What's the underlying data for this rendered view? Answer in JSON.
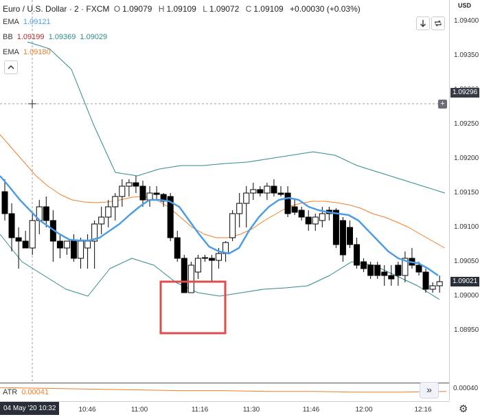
{
  "header": {
    "symbol": "Euro / U.S. Dollar · 2 · FXCM",
    "o_label": "O",
    "o_value": "1.09079",
    "h_label": "H",
    "h_value": "1.09109",
    "l_label": "L",
    "l_value": "1.09072",
    "c_label": "C",
    "c_value": "1.09109",
    "change": "+0.00030 (+0.03%)"
  },
  "legend": {
    "ema1_label": "EMA",
    "ema1_value": "1.09121",
    "bb_label": "BB",
    "bb_basis": "1.09199",
    "bb_upper": "1.09369",
    "bb_lower": "1.09029",
    "ema2_label": "EMA",
    "ema2_value": "1.09180",
    "atr_label": "ATR",
    "atr_value": "0.00041"
  },
  "currency": "USD",
  "crosshair_price": "1.09296",
  "last_price": "1.09021",
  "atr_axis_value": "0.00040",
  "date_badge": "04 May '20   10:32",
  "colors": {
    "ema_fast": "#4a9be8",
    "ema_slow": "#f07e26",
    "bb_lines": "#2f8a8a",
    "bb_basis": "#b02a2a",
    "candle_up": "#ffffff",
    "candle_down": "#000000",
    "highlight": "#e24b4b"
  },
  "icons": {
    "collapse": "chevron-up-icon",
    "settings": "gear-icon",
    "scroll": "double-chevron-right-icon",
    "download": "arrow-down-icon",
    "refresh": "refresh-icon"
  },
  "chart_data": {
    "type": "candlestick",
    "ylim": [
      1.0895,
      1.0942
    ],
    "yticks": [
      "1.09400",
      "1.09350",
      "1.09300",
      "1.09250",
      "1.09200",
      "1.09150",
      "1.09100",
      "1.09050",
      "1.09000",
      "1.08950"
    ],
    "xticks": [
      "10:46",
      "11:00",
      "11:16",
      "11:30",
      "11:46",
      "12:00",
      "12:16"
    ],
    "candles": [
      {
        "o": 1.09152,
        "h": 1.0917,
        "l": 1.0911,
        "c": 1.0912
      },
      {
        "o": 1.0912,
        "h": 1.09135,
        "l": 1.09065,
        "c": 1.09085
      },
      {
        "o": 1.09085,
        "h": 1.091,
        "l": 1.0904,
        "c": 1.0908
      },
      {
        "o": 1.0908,
        "h": 1.09095,
        "l": 1.0907,
        "c": 1.0907
      },
      {
        "o": 1.0907,
        "h": 1.0912,
        "l": 1.0906,
        "c": 1.0911
      },
      {
        "o": 1.0911,
        "h": 1.0914,
        "l": 1.0909,
        "c": 1.0913
      },
      {
        "o": 1.0913,
        "h": 1.09145,
        "l": 1.091,
        "c": 1.0911
      },
      {
        "o": 1.0911,
        "h": 1.09125,
        "l": 1.0905,
        "c": 1.0908
      },
      {
        "o": 1.0908,
        "h": 1.0909,
        "l": 1.09055,
        "c": 1.0907
      },
      {
        "o": 1.0907,
        "h": 1.0908,
        "l": 1.0906,
        "c": 1.0908
      },
      {
        "o": 1.0908,
        "h": 1.0909,
        "l": 1.0905,
        "c": 1.09055
      },
      {
        "o": 1.09055,
        "h": 1.09085,
        "l": 1.0904,
        "c": 1.0908
      },
      {
        "o": 1.0907,
        "h": 1.0909,
        "l": 1.0904,
        "c": 1.0908
      },
      {
        "o": 1.0908,
        "h": 1.0911,
        "l": 1.0904,
        "c": 1.09105
      },
      {
        "o": 1.09105,
        "h": 1.0913,
        "l": 1.0909,
        "c": 1.09115
      },
      {
        "o": 1.09115,
        "h": 1.0914,
        "l": 1.091,
        "c": 1.0913
      },
      {
        "o": 1.0913,
        "h": 1.0915,
        "l": 1.0911,
        "c": 1.09145
      },
      {
        "o": 1.09145,
        "h": 1.0917,
        "l": 1.0913,
        "c": 1.0916
      },
      {
        "o": 1.0916,
        "h": 1.0917,
        "l": 1.09145,
        "c": 1.09165
      },
      {
        "o": 1.09165,
        "h": 1.09175,
        "l": 1.0915,
        "c": 1.0916
      },
      {
        "o": 1.0916,
        "h": 1.09168,
        "l": 1.0913,
        "c": 1.0914
      },
      {
        "o": 1.0914,
        "h": 1.0916,
        "l": 1.0913,
        "c": 1.0915
      },
      {
        "o": 1.0915,
        "h": 1.0916,
        "l": 1.0914,
        "c": 1.09148
      },
      {
        "o": 1.09148,
        "h": 1.0915,
        "l": 1.0913,
        "c": 1.09138
      },
      {
        "o": 1.09145,
        "h": 1.0915,
        "l": 1.0908,
        "c": 1.09085
      },
      {
        "o": 1.09085,
        "h": 1.09095,
        "l": 1.0905,
        "c": 1.09055
      },
      {
        "o": 1.09055,
        "h": 1.0906,
        "l": 1.09005,
        "c": 1.09005
      },
      {
        "o": 1.09005,
        "h": 1.0905,
        "l": 1.09005,
        "c": 1.09045
      },
      {
        "o": 1.09035,
        "h": 1.0906,
        "l": 1.09025,
        "c": 1.09055
      },
      {
        "o": 1.09055,
        "h": 1.0906,
        "l": 1.0905,
        "c": 1.09056
      },
      {
        "o": 1.09055,
        "h": 1.0906,
        "l": 1.0902,
        "c": 1.09052
      },
      {
        "o": 1.09052,
        "h": 1.0907,
        "l": 1.0904,
        "c": 1.09062
      },
      {
        "o": 1.09062,
        "h": 1.0908,
        "l": 1.0905,
        "c": 1.09078
      },
      {
        "o": 1.09085,
        "h": 1.09125,
        "l": 1.0908,
        "c": 1.0912
      },
      {
        "o": 1.0912,
        "h": 1.0915,
        "l": 1.091,
        "c": 1.09135
      },
      {
        "o": 1.09135,
        "h": 1.0916,
        "l": 1.091,
        "c": 1.0915
      },
      {
        "o": 1.0915,
        "h": 1.09165,
        "l": 1.0914,
        "c": 1.09155
      },
      {
        "o": 1.09155,
        "h": 1.0916,
        "l": 1.09145,
        "c": 1.0915
      },
      {
        "o": 1.0915,
        "h": 1.09165,
        "l": 1.0914,
        "c": 1.0916
      },
      {
        "o": 1.0916,
        "h": 1.0917,
        "l": 1.09145,
        "c": 1.0915
      },
      {
        "o": 1.0915,
        "h": 1.0916,
        "l": 1.09145,
        "c": 1.09148
      },
      {
        "o": 1.0915,
        "h": 1.0916,
        "l": 1.09115,
        "c": 1.0912
      },
      {
        "o": 1.0913,
        "h": 1.0914,
        "l": 1.09118,
        "c": 1.09122
      },
      {
        "o": 1.09125,
        "h": 1.0913,
        "l": 1.0911,
        "c": 1.09115
      },
      {
        "o": 1.09115,
        "h": 1.09125,
        "l": 1.09095,
        "c": 1.09105
      },
      {
        "o": 1.09105,
        "h": 1.0912,
        "l": 1.09095,
        "c": 1.09115
      },
      {
        "o": 1.0911,
        "h": 1.0913,
        "l": 1.091,
        "c": 1.0912
      },
      {
        "o": 1.09125,
        "h": 1.0913,
        "l": 1.0911,
        "c": 1.0912
      },
      {
        "o": 1.09125,
        "h": 1.09128,
        "l": 1.0907,
        "c": 1.09075
      },
      {
        "o": 1.0911,
        "h": 1.09115,
        "l": 1.0905,
        "c": 1.0906
      },
      {
        "o": 1.091,
        "h": 1.0911,
        "l": 1.0907,
        "c": 1.09075
      },
      {
        "o": 1.09075,
        "h": 1.09085,
        "l": 1.0904,
        "c": 1.09045
      },
      {
        "o": 1.0905,
        "h": 1.09055,
        "l": 1.09035,
        "c": 1.0904
      },
      {
        "o": 1.09045,
        "h": 1.0905,
        "l": 1.09025,
        "c": 1.0903
      },
      {
        "o": 1.09045,
        "h": 1.0905,
        "l": 1.09025,
        "c": 1.0903
      },
      {
        "o": 1.09035,
        "h": 1.09045,
        "l": 1.09015,
        "c": 1.0903
      },
      {
        "o": 1.0903,
        "h": 1.09045,
        "l": 1.09015,
        "c": 1.09025
      },
      {
        "o": 1.09045,
        "h": 1.0905,
        "l": 1.09015,
        "c": 1.0903
      },
      {
        "o": 1.0903,
        "h": 1.09065,
        "l": 1.0902,
        "c": 1.09055
      },
      {
        "o": 1.09055,
        "h": 1.0907,
        "l": 1.0904,
        "c": 1.09045
      },
      {
        "o": 1.09045,
        "h": 1.0905,
        "l": 1.0903,
        "c": 1.09035
      },
      {
        "o": 1.09035,
        "h": 1.0904,
        "l": 1.09005,
        "c": 1.0901
      },
      {
        "o": 1.0901,
        "h": 1.0902,
        "l": 1.09005,
        "c": 1.09015
      },
      {
        "o": 1.09015,
        "h": 1.0903,
        "l": 1.09005,
        "c": 1.09021
      }
    ],
    "ema_fast": [
      1.09175,
      1.09158,
      1.0914,
      1.09125,
      1.0911,
      1.091,
      1.0909,
      1.09082,
      1.09081,
      1.09081,
      1.09085,
      1.09095,
      1.09105,
      1.09118,
      1.0913,
      1.0914,
      1.0914,
      1.09138,
      1.0913,
      1.0911,
      1.0909,
      1.09072,
      1.09065,
      1.09062,
      1.0907,
      1.09095,
      1.09115,
      1.0913,
      1.0914,
      1.09143,
      1.0914,
      1.0913,
      1.09125,
      1.09122,
      1.0912,
      1.09118,
      1.0911,
      1.09095,
      1.0908,
      1.09065,
      1.09055,
      1.0905,
      1.09048,
      1.0904,
      1.0903
    ],
    "ema_slow": [
      1.09235,
      1.09215,
      1.09195,
      1.09175,
      1.0916,
      1.09148,
      1.0914,
      1.09137,
      1.09136,
      1.09137,
      1.0914,
      1.09144,
      1.09145,
      1.0914,
      1.0913,
      1.09115,
      1.091,
      1.0909,
      1.09085,
      1.09085,
      1.0909,
      1.09098,
      1.0911,
      1.0912,
      1.0913,
      1.09135,
      1.09138,
      1.09138,
      1.09136,
      1.09133,
      1.09128,
      1.0912,
      1.09115,
      1.09108,
      1.091,
      1.0909,
      1.0908,
      1.0907
    ],
    "bb_upper": [
      1.0937,
      1.0936,
      1.0933,
      1.0925,
      1.0918,
      1.09175,
      1.09185,
      1.0919,
      1.0919,
      1.09193,
      1.09195,
      1.092,
      1.09205,
      1.0921,
      1.09205,
      1.0919,
      1.0918,
      1.0917,
      1.0916,
      1.0915
    ],
    "bb_lower": [
      1.0909,
      1.0905,
      1.0903,
      1.0901,
      1.09,
      1.0904,
      1.09055,
      1.09045,
      1.0902,
      1.09005,
      1.09,
      1.09005,
      1.0901,
      1.09012,
      1.09015,
      1.0903,
      1.0905,
      1.09045,
      1.0903,
      1.09015,
      1.08995
    ],
    "atr": [
      0.00046,
      0.00045,
      0.00044,
      0.00043,
      0.00042,
      0.00042,
      0.00041,
      0.00041,
      0.0004,
      0.0004,
      0.00041
    ]
  }
}
